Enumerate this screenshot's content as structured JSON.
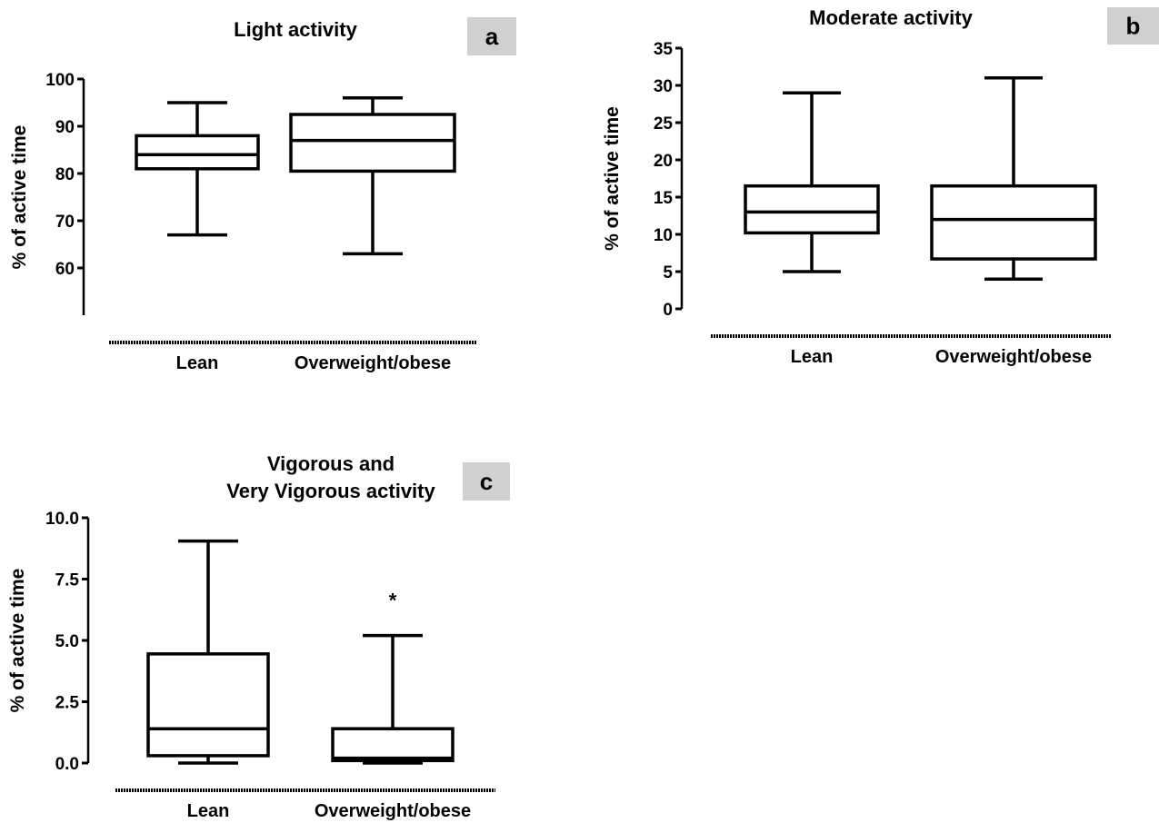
{
  "chart_data": [
    {
      "type": "box",
      "panel": "a",
      "title": [
        "Light activity"
      ],
      "ylabel": "% of active time",
      "ylim": [
        50,
        100
      ],
      "yticks": [
        60,
        70,
        80,
        90,
        100
      ],
      "ytick_labels": [
        "60",
        "70",
        "80",
        "90",
        "100"
      ],
      "categories": [
        "Lean",
        "Overweight/obese"
      ],
      "boxes": [
        {
          "min": 67,
          "q1": 81,
          "median": 84,
          "q3": 88,
          "max": 95
        },
        {
          "min": 63,
          "q1": 80.5,
          "median": 87,
          "q3": 92.5,
          "max": 96
        }
      ],
      "annotations": []
    },
    {
      "type": "box",
      "panel": "b",
      "title": [
        "Moderate activity"
      ],
      "ylabel": "% of active time",
      "ylim": [
        0,
        35
      ],
      "yticks": [
        0,
        5,
        10,
        15,
        20,
        25,
        30,
        35
      ],
      "ytick_labels": [
        "0",
        "5",
        "10",
        "15",
        "20",
        "25",
        "30",
        "35"
      ],
      "categories": [
        "Lean",
        "Overweight/obese"
      ],
      "boxes": [
        {
          "min": 5,
          "q1": 10.2,
          "median": 13,
          "q3": 16.5,
          "max": 29
        },
        {
          "min": 4,
          "q1": 6.7,
          "median": 12,
          "q3": 16.5,
          "max": 31
        }
      ],
      "annotations": []
    },
    {
      "type": "box",
      "panel": "c",
      "title": [
        "Vigorous and",
        "Very Vigorous activity"
      ],
      "ylabel": "% of active time",
      "ylim": [
        0,
        10
      ],
      "yticks": [
        0,
        2.5,
        5,
        7.5,
        10
      ],
      "ytick_labels": [
        "0.0",
        "2.5",
        "5.0",
        "7.5",
        "10.0"
      ],
      "categories": [
        "Lean",
        "Overweight/obese"
      ],
      "boxes": [
        {
          "min": 0,
          "q1": 0.3,
          "median": 1.4,
          "q3": 4.45,
          "max": 9.05
        },
        {
          "min": 0,
          "q1": 0.1,
          "median": 0.2,
          "q3": 1.4,
          "max": 5.2
        }
      ],
      "annotations": [
        {
          "category_index": 1,
          "y": 6.8,
          "text": "*"
        }
      ]
    }
  ]
}
